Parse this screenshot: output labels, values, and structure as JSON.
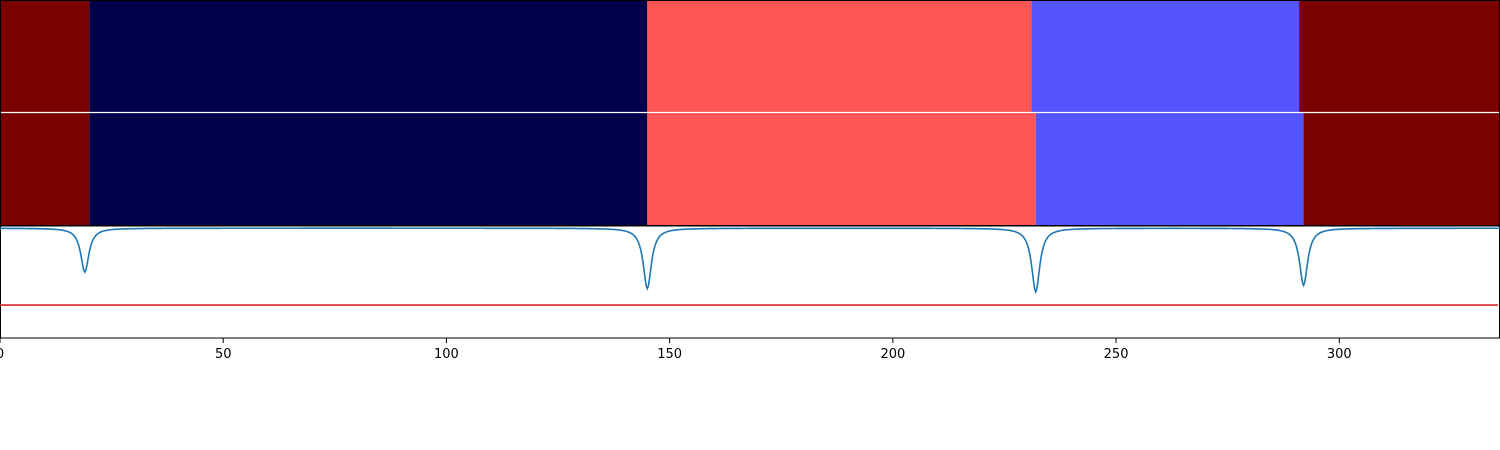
{
  "chart_data": {
    "type": "area",
    "x_axis": {
      "range": [
        0,
        336
      ],
      "ticks": [
        0,
        50,
        100,
        150,
        200,
        250,
        300
      ],
      "tick_labels": [
        "0",
        "50",
        "100",
        "150",
        "200",
        "250",
        "300"
      ]
    },
    "segment_rows": [
      {
        "segments": [
          {
            "start": 0,
            "end": 20,
            "color": "#7b0000"
          },
          {
            "start": 20,
            "end": 145,
            "color": "#00004a"
          },
          {
            "start": 145,
            "end": 231,
            "color": "#ff5555"
          },
          {
            "start": 231,
            "end": 291,
            "color": "#5555ff"
          },
          {
            "start": 291,
            "end": 336,
            "color": "#7b0000"
          }
        ]
      },
      {
        "segments": [
          {
            "start": 0,
            "end": 20,
            "color": "#7b0000"
          },
          {
            "start": 20,
            "end": 145,
            "color": "#00004a"
          },
          {
            "start": 145,
            "end": 232,
            "color": "#ff5555"
          },
          {
            "start": 232,
            "end": 292,
            "color": "#5555ff"
          },
          {
            "start": 292,
            "end": 336,
            "color": "#7b0000"
          }
        ]
      }
    ],
    "signal": {
      "color": "#1f77b4",
      "baseline": 1.0,
      "ylim": [
        0,
        1.02
      ],
      "dips": [
        {
          "x": 19,
          "min": 0.6
        },
        {
          "x": 145,
          "min": 0.45
        },
        {
          "x": 232,
          "min": 0.42
        },
        {
          "x": 292,
          "min": 0.48
        }
      ]
    },
    "threshold": {
      "value": 0.3,
      "color": "#d62728"
    }
  }
}
